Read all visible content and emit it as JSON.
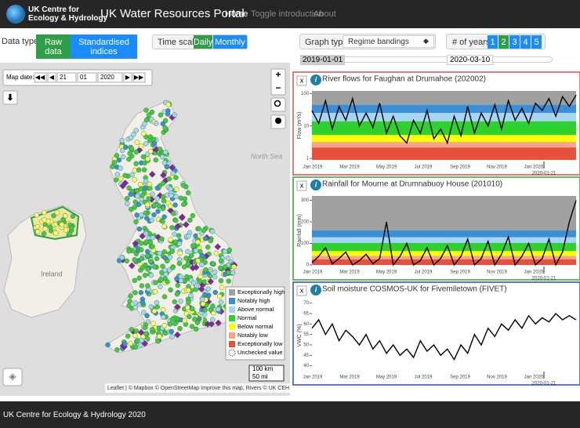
{
  "navbar": {
    "logo_lines": [
      "UK Centre for",
      "Ecology & Hydrology"
    ],
    "brand": "UK Water Resources Portal",
    "links": [
      "Home",
      "Toggle introduction",
      "About"
    ]
  },
  "controls": {
    "data_type_label": "Data type:",
    "data_type_options": [
      "Raw data",
      "Standardised indices"
    ],
    "time_scale_label": "Time scale:",
    "time_scale_options": [
      "Daily",
      "Monthly"
    ],
    "graph_type_label": "Graph type:",
    "graph_type_value": "Regime bandings",
    "years_label": "# of years:",
    "years_options": [
      "1",
      "2",
      "3",
      "4",
      "5"
    ],
    "range_start": "2019-01-01",
    "range_end": "2020-03-10"
  },
  "map": {
    "date_label": "Map date:",
    "day": "21",
    "month": "01",
    "year": "2020",
    "sea_label": "North Sea",
    "country_label": "Ireland",
    "scale": [
      "100 km",
      "50 mi"
    ],
    "attribution": "Leaflet | © Mapbox © OpenStreetMap Improve this map, Rivers © UK CEH"
  },
  "legend": {
    "items": [
      {
        "label": "Exceptionally high",
        "color": "#a0a0a0"
      },
      {
        "label": "Notably high",
        "color": "#3b8fd6"
      },
      {
        "label": "Above normal",
        "color": "#a6d5f5"
      },
      {
        "label": "Normal",
        "color": "#2fd12f"
      },
      {
        "label": "Below normal",
        "color": "#ffff00"
      },
      {
        "label": "Notably low",
        "color": "#f5a58c"
      },
      {
        "label": "Exceptionally low",
        "color": "#e8503c"
      },
      {
        "label": "Unchecked value",
        "color": "#ffffff"
      }
    ]
  },
  "charts": [
    {
      "title": "River flows for Faughan at Drumahoe (202002)",
      "border": "#d9534f",
      "ylabel": "Flow (m³/s)",
      "log": true,
      "ylim": [
        0.9,
        120
      ],
      "yticks": [
        1,
        10,
        100
      ],
      "bands": [
        "#a0a0a0",
        "#3b8fd6",
        "#a6d5f5",
        "#2fd12f",
        "#ffff00",
        "#f5a58c",
        "#e8503c"
      ],
      "xtick_labels": [
        "Jan 2019",
        "Mar 2019",
        "May 2019",
        "Jul 2019",
        "Sep 2019",
        "Nov 2019",
        "Jan 2020"
      ],
      "marker_label": "2020-01-21",
      "values": [
        30,
        12,
        60,
        8,
        40,
        15,
        70,
        10,
        25,
        9,
        50,
        6,
        20,
        5,
        3,
        15,
        6,
        30,
        4,
        8,
        3,
        20,
        5,
        40,
        6,
        25,
        10,
        45,
        8,
        60,
        15,
        35,
        12,
        50,
        30,
        70,
        20,
        80,
        40,
        90
      ]
    },
    {
      "title": "Rainfall for Mourne at Drumnabuoy House (201010)",
      "border": "#3a9d3a",
      "ylabel": "Rainfall (mm)",
      "log": false,
      "ylim": [
        0,
        320
      ],
      "yticks": [
        0,
        100,
        200,
        300
      ],
      "bands": [
        "#a0a0a0",
        "#3b8fd6",
        "#a6d5f5",
        "#2fd12f",
        "#ffff00",
        "#f5a58c",
        "#e8503c"
      ],
      "xtick_labels": [
        "Jan 2019",
        "Mar 2019",
        "May 2019",
        "Jul 2019",
        "Sep 2019",
        "Nov 2019",
        "Jan 2020"
      ],
      "marker_label": "2020-01-21",
      "values": [
        10,
        40,
        80,
        5,
        30,
        60,
        0,
        20,
        50,
        5,
        30,
        200,
        0,
        40,
        100,
        0,
        20,
        80,
        0,
        30,
        90,
        0,
        40,
        120,
        0,
        30,
        110,
        0,
        50,
        130,
        0,
        40,
        100,
        0,
        30,
        120,
        0,
        60,
        200,
        300
      ]
    },
    {
      "title": "Soil moisture COSMOS-UK for Fivemiletown (FIVET)",
      "border": "#2a4fb0",
      "ylabel": "VWC (%)",
      "log": false,
      "ylim": [
        38,
        71
      ],
      "yticks": [
        40,
        45,
        50,
        55,
        60,
        65,
        70
      ],
      "xtick_labels": [
        "Jan 2019",
        "Mar 2019",
        "May 2019",
        "Jul 2019",
        "Sep 2019",
        "Nov 2019",
        "Jan 2020"
      ],
      "marker_label": "2020-01-21",
      "values": [
        58,
        62,
        55,
        60,
        52,
        57,
        54,
        50,
        55,
        48,
        52,
        46,
        50,
        45,
        48,
        44,
        52,
        47,
        50,
        45,
        48,
        43,
        50,
        46,
        55,
        50,
        58,
        54,
        60,
        57,
        62,
        58,
        64,
        60,
        63,
        61,
        65,
        62,
        64,
        62
      ]
    }
  ],
  "footer": "UK Centre for Ecology & Hydrology 2020"
}
